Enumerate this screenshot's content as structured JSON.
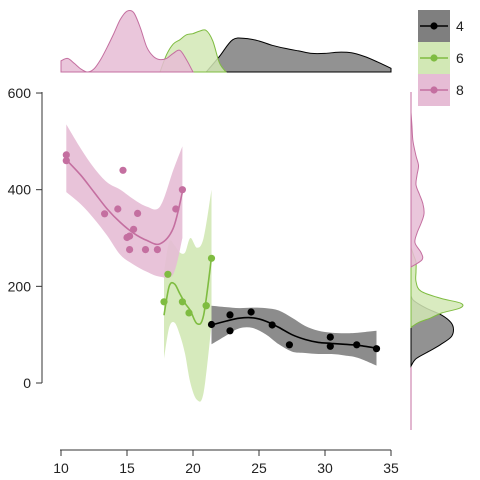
{
  "chart_data": {
    "type": "scatter",
    "title": "",
    "xlabel": "",
    "ylabel": "",
    "xlim": [
      10,
      35
    ],
    "ylim": [
      -100,
      600
    ],
    "x_ticks": [
      10,
      15,
      20,
      25,
      30,
      35
    ],
    "y_ticks": [
      0,
      200,
      400,
      600
    ],
    "legend_position": "top-right",
    "grid": false,
    "series": [
      {
        "name": "4",
        "color": "#000000",
        "band_color": "#7f7f7f",
        "points": [
          [
            21.4,
            121
          ],
          [
            22.8,
            108
          ],
          [
            22.8,
            141
          ],
          [
            24.4,
            147
          ],
          [
            26.0,
            120
          ],
          [
            27.3,
            79
          ],
          [
            30.4,
            95
          ],
          [
            30.4,
            76
          ],
          [
            32.4,
            79
          ],
          [
            33.9,
            71
          ]
        ],
        "fit": [
          [
            21.4,
            120
          ],
          [
            22.5,
            128
          ],
          [
            23.5,
            134
          ],
          [
            24.5,
            135
          ],
          [
            25.5,
            128
          ],
          [
            26.5,
            115
          ],
          [
            27.5,
            100
          ],
          [
            28.5,
            90
          ],
          [
            29.5,
            84
          ],
          [
            30.5,
            82
          ],
          [
            31.5,
            80
          ],
          [
            32.5,
            78
          ],
          [
            33.9,
            72
          ]
        ],
        "band_upper": [
          [
            21.4,
            160
          ],
          [
            22.5,
            157
          ],
          [
            23.5,
            155
          ],
          [
            24.5,
            156
          ],
          [
            25.5,
            155
          ],
          [
            26.5,
            150
          ],
          [
            27.5,
            135
          ],
          [
            28.5,
            118
          ],
          [
            29.5,
            108
          ],
          [
            30.5,
            104
          ],
          [
            31.5,
            103
          ],
          [
            32.5,
            104
          ],
          [
            33.9,
            108
          ]
        ],
        "band_lower": [
          [
            21.4,
            80
          ],
          [
            22.5,
            98
          ],
          [
            23.5,
            113
          ],
          [
            24.5,
            114
          ],
          [
            25.5,
            101
          ],
          [
            26.5,
            80
          ],
          [
            27.5,
            65
          ],
          [
            28.5,
            62
          ],
          [
            29.5,
            60
          ],
          [
            30.5,
            60
          ],
          [
            31.5,
            57
          ],
          [
            32.5,
            52
          ],
          [
            33.9,
            36
          ]
        ],
        "density_x": [
          [
            21.0,
            0.0
          ],
          [
            22.0,
            0.25
          ],
          [
            23.0,
            0.52
          ],
          [
            24.0,
            0.54
          ],
          [
            25.0,
            0.5
          ],
          [
            26.0,
            0.43
          ],
          [
            27.0,
            0.38
          ],
          [
            28.0,
            0.34
          ],
          [
            29.0,
            0.3
          ],
          [
            30.0,
            0.3
          ],
          [
            31.0,
            0.32
          ],
          [
            32.0,
            0.31
          ],
          [
            33.0,
            0.25
          ],
          [
            34.0,
            0.16
          ],
          [
            35.0,
            0.06
          ]
        ],
        "density_y": [
          [
            35,
            0.0
          ],
          [
            50,
            0.1
          ],
          [
            65,
            0.35
          ],
          [
            80,
            0.6
          ],
          [
            95,
            0.8
          ],
          [
            110,
            0.85
          ],
          [
            125,
            0.8
          ],
          [
            140,
            0.62
          ],
          [
            155,
            0.3
          ],
          [
            170,
            0.06
          ],
          [
            180,
            0.0
          ]
        ]
      },
      {
        "name": "6",
        "color": "#7fbc41",
        "band_color": "#d2e8b5",
        "points": [
          [
            17.8,
            168
          ],
          [
            18.1,
            225
          ],
          [
            19.2,
            168
          ],
          [
            19.7,
            145
          ],
          [
            21.0,
            160
          ],
          [
            21.4,
            258
          ],
          [
            21.0,
            160
          ]
        ],
        "fit": [
          [
            17.8,
            140
          ],
          [
            18.2,
            200
          ],
          [
            18.6,
            205
          ],
          [
            19.0,
            185
          ],
          [
            19.4,
            165
          ],
          [
            19.8,
            150
          ],
          [
            20.3,
            123
          ],
          [
            20.8,
            140
          ],
          [
            21.4,
            260
          ]
        ],
        "band_upper": [
          [
            17.8,
            230
          ],
          [
            18.2,
            292
          ],
          [
            18.6,
            285
          ],
          [
            19.0,
            270
          ],
          [
            19.4,
            270
          ],
          [
            19.8,
            300
          ],
          [
            20.3,
            280
          ],
          [
            20.8,
            300
          ],
          [
            21.4,
            400
          ]
        ],
        "band_lower": [
          [
            17.8,
            50
          ],
          [
            18.2,
            115
          ],
          [
            18.6,
            125
          ],
          [
            19.0,
            100
          ],
          [
            19.4,
            60
          ],
          [
            19.8,
            0
          ],
          [
            20.3,
            -35
          ],
          [
            20.8,
            -20
          ],
          [
            21.4,
            120
          ]
        ],
        "density_x": [
          [
            17.5,
            0.0
          ],
          [
            18.0,
            0.28
          ],
          [
            18.5,
            0.45
          ],
          [
            19.0,
            0.52
          ],
          [
            19.5,
            0.6
          ],
          [
            20.0,
            0.62
          ],
          [
            20.5,
            0.66
          ],
          [
            21.0,
            0.67
          ],
          [
            21.5,
            0.5
          ],
          [
            22.0,
            0.15
          ],
          [
            22.5,
            0.0
          ]
        ],
        "density_y": [
          [
            115,
            0.0
          ],
          [
            125,
            0.15
          ],
          [
            135,
            0.4
          ],
          [
            145,
            0.62
          ],
          [
            155,
            0.98
          ],
          [
            165,
            1.0
          ],
          [
            175,
            0.6
          ],
          [
            190,
            0.2
          ],
          [
            210,
            0.1
          ],
          [
            230,
            0.1
          ],
          [
            250,
            0.1
          ],
          [
            265,
            0.05
          ],
          [
            280,
            0.0
          ]
        ]
      },
      {
        "name": "8",
        "color": "#c46fa0",
        "band_color": "#e6bcd5",
        "points": [
          [
            10.4,
            472
          ],
          [
            10.4,
            460
          ],
          [
            13.3,
            350
          ],
          [
            14.3,
            360
          ],
          [
            14.7,
            440
          ],
          [
            15.0,
            301
          ],
          [
            15.2,
            276
          ],
          [
            15.2,
            304
          ],
          [
            15.5,
            318
          ],
          [
            15.8,
            351
          ],
          [
            16.4,
            276
          ],
          [
            17.3,
            276
          ],
          [
            18.7,
            360
          ],
          [
            19.2,
            400
          ]
        ],
        "fit": [
          [
            10.4,
            462
          ],
          [
            11.5,
            430
          ],
          [
            12.5,
            395
          ],
          [
            13.5,
            360
          ],
          [
            14.5,
            332
          ],
          [
            15.5,
            310
          ],
          [
            16.5,
            295
          ],
          [
            17.5,
            288
          ],
          [
            18.5,
            320
          ],
          [
            19.2,
            395
          ]
        ],
        "band_upper": [
          [
            10.4,
            535
          ],
          [
            11.5,
            485
          ],
          [
            12.5,
            445
          ],
          [
            13.5,
            415
          ],
          [
            14.5,
            400
          ],
          [
            15.5,
            380
          ],
          [
            16.5,
            365
          ],
          [
            17.5,
            365
          ],
          [
            18.5,
            440
          ],
          [
            19.2,
            490
          ]
        ],
        "band_lower": [
          [
            10.4,
            395
          ],
          [
            11.5,
            370
          ],
          [
            12.5,
            340
          ],
          [
            13.5,
            305
          ],
          [
            14.5,
            265
          ],
          [
            15.5,
            245
          ],
          [
            16.5,
            230
          ],
          [
            17.5,
            220
          ],
          [
            18.5,
            225
          ],
          [
            19.2,
            300
          ]
        ],
        "density_x": [
          [
            10.0,
            0.18
          ],
          [
            10.5,
            0.22
          ],
          [
            11.0,
            0.14
          ],
          [
            11.5,
            0.05
          ],
          [
            12.0,
            0.0
          ],
          [
            12.5,
            0.05
          ],
          [
            13.0,
            0.2
          ],
          [
            13.5,
            0.4
          ],
          [
            14.0,
            0.62
          ],
          [
            14.5,
            0.85
          ],
          [
            15.0,
            0.98
          ],
          [
            15.5,
            0.96
          ],
          [
            16.0,
            0.72
          ],
          [
            16.5,
            0.4
          ],
          [
            17.0,
            0.25
          ],
          [
            17.5,
            0.2
          ],
          [
            18.0,
            0.22
          ],
          [
            18.5,
            0.3
          ],
          [
            19.0,
            0.35
          ],
          [
            19.5,
            0.2
          ],
          [
            20.0,
            0.0
          ]
        ],
        "density_y": [
          [
            240,
            0.0
          ],
          [
            255,
            0.22
          ],
          [
            270,
            0.2
          ],
          [
            290,
            0.08
          ],
          [
            310,
            0.12
          ],
          [
            330,
            0.2
          ],
          [
            350,
            0.26
          ],
          [
            370,
            0.24
          ],
          [
            390,
            0.17
          ],
          [
            410,
            0.1
          ],
          [
            430,
            0.12
          ],
          [
            450,
            0.15
          ],
          [
            470,
            0.1
          ],
          [
            500,
            0.04
          ],
          [
            530,
            0.02
          ],
          [
            560,
            0.0
          ]
        ]
      }
    ]
  }
}
